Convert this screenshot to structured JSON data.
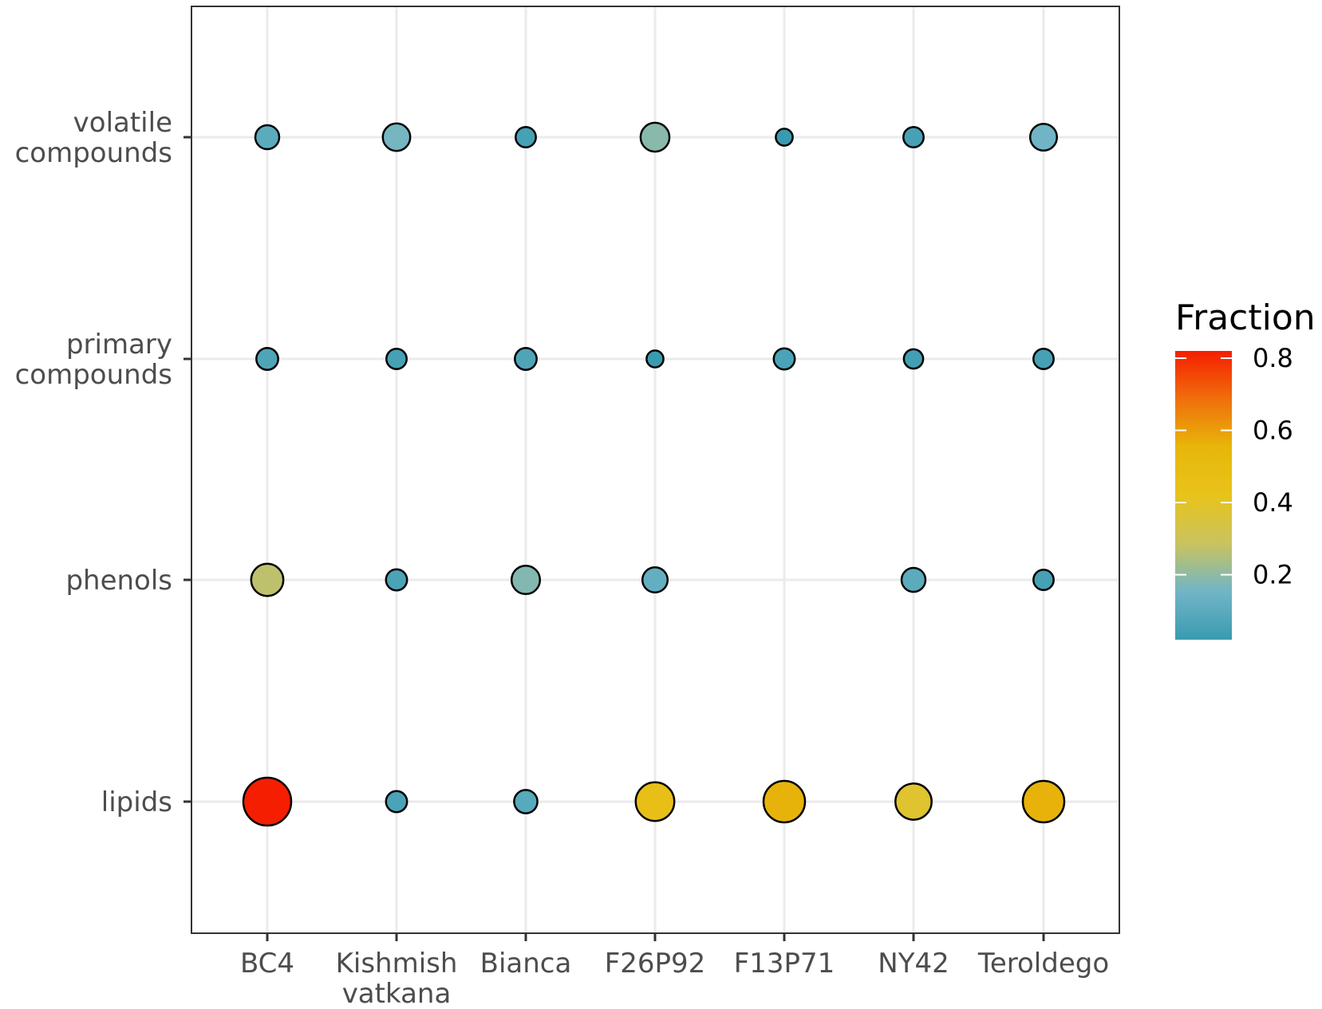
{
  "chart_data": {
    "type": "scatter",
    "subtype": "bubble",
    "title": "",
    "xlabel": "",
    "ylabel": "",
    "x_categories": [
      [
        "BC4"
      ],
      [
        "Kishmish",
        "vatkana"
      ],
      [
        "Bianca"
      ],
      [
        "F26P92"
      ],
      [
        "F13P71"
      ],
      [
        "NY42"
      ],
      [
        "Teroldego"
      ]
    ],
    "y_categories": [
      [
        "lipids"
      ],
      [
        "phenols"
      ],
      [
        "primary",
        "compounds"
      ],
      [
        "volatile",
        "compounds"
      ]
    ],
    "grid": true,
    "legend": {
      "title": "Fraction",
      "position": "right",
      "ticks": [
        "0.2",
        "0.4",
        "0.6",
        "0.8"
      ],
      "range": [
        0.02,
        0.82
      ],
      "colors": [
        "#3a9bb0",
        "#71b5c6",
        "#c9c35f",
        "#e8c31b",
        "#e7b70a",
        "#f06f0c",
        "#f51e00"
      ]
    },
    "points": [
      {
        "x": "BC4",
        "y": "volatile compounds",
        "value": 0.1
      },
      {
        "x": "Kishmish vatkana",
        "y": "volatile compounds",
        "value": 0.16
      },
      {
        "x": "Bianca",
        "y": "volatile compounds",
        "value": 0.05
      },
      {
        "x": "F26P92",
        "y": "volatile compounds",
        "value": 0.19
      },
      {
        "x": "F13P71",
        "y": "volatile compounds",
        "value": 0.02
      },
      {
        "x": "NY42",
        "y": "volatile compounds",
        "value": 0.05
      },
      {
        "x": "Teroldego",
        "y": "volatile compounds",
        "value": 0.15
      },
      {
        "x": "BC4",
        "y": "primary compounds",
        "value": 0.07
      },
      {
        "x": "Kishmish vatkana",
        "y": "primary compounds",
        "value": 0.05
      },
      {
        "x": "Bianca",
        "y": "primary compounds",
        "value": 0.07
      },
      {
        "x": "F26P92",
        "y": "primary compounds",
        "value": 0.02
      },
      {
        "x": "F13P71",
        "y": "primary compounds",
        "value": 0.06
      },
      {
        "x": "NY42",
        "y": "primary compounds",
        "value": 0.04
      },
      {
        "x": "Teroldego",
        "y": "primary compounds",
        "value": 0.05
      },
      {
        "x": "BC4",
        "y": "phenols",
        "value": 0.27
      },
      {
        "x": "Kishmish vatkana",
        "y": "phenols",
        "value": 0.06
      },
      {
        "x": "Bianca",
        "y": "phenols",
        "value": 0.18
      },
      {
        "x": "F26P92",
        "y": "phenols",
        "value": 0.12
      },
      {
        "x": "NY42",
        "y": "phenols",
        "value": 0.1
      },
      {
        "x": "Teroldego",
        "y": "phenols",
        "value": 0.05
      },
      {
        "x": "BC4",
        "y": "lipids",
        "value": 0.82
      },
      {
        "x": "Kishmish vatkana",
        "y": "lipids",
        "value": 0.06
      },
      {
        "x": "Bianca",
        "y": "lipids",
        "value": 0.09
      },
      {
        "x": "F26P92",
        "y": "lipids",
        "value": 0.46
      },
      {
        "x": "F13P71",
        "y": "lipids",
        "value": 0.56
      },
      {
        "x": "NY42",
        "y": "lipids",
        "value": 0.38
      },
      {
        "x": "Teroldego",
        "y": "lipids",
        "value": 0.56
      }
    ]
  }
}
